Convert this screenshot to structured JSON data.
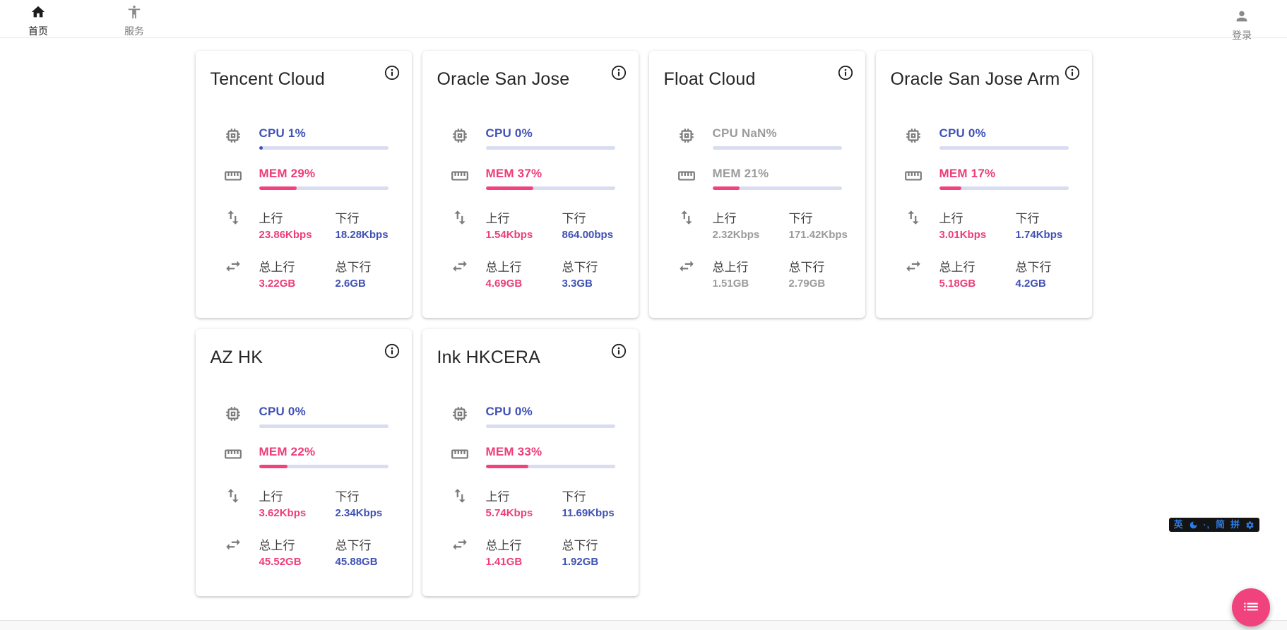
{
  "nav": {
    "home": {
      "label": "首页"
    },
    "services": {
      "label": "服务"
    },
    "login": {
      "label": "登录"
    }
  },
  "labels": {
    "up": "上行",
    "down": "下行",
    "total_up": "总上行",
    "total_down": "总下行"
  },
  "servers": [
    {
      "name": "Tencent Cloud",
      "cpu_text": "CPU 1%",
      "cpu_pct": 1,
      "mem_text": "MEM 29%",
      "mem_pct": 29,
      "up": "23.86Kbps",
      "down": "18.28Kbps",
      "total_up": "3.22GB",
      "total_down": "2.6GB",
      "offline": false
    },
    {
      "name": "Oracle San Jose",
      "cpu_text": "CPU 0%",
      "cpu_pct": 0,
      "mem_text": "MEM 37%",
      "mem_pct": 37,
      "up": "1.54Kbps",
      "down": "864.00bps",
      "total_up": "4.69GB",
      "total_down": "3.3GB",
      "offline": false
    },
    {
      "name": "Float Cloud",
      "cpu_text": "CPU NaN%",
      "cpu_pct": 0,
      "mem_text": "MEM 21%",
      "mem_pct": 21,
      "up": "2.32Kbps",
      "down": "171.42Kbps",
      "total_up": "1.51GB",
      "total_down": "2.79GB",
      "offline": true
    },
    {
      "name": "Oracle San Jose Arm",
      "cpu_text": "CPU 0%",
      "cpu_pct": 0,
      "mem_text": "MEM 17%",
      "mem_pct": 17,
      "up": "3.01Kbps",
      "down": "1.74Kbps",
      "total_up": "5.18GB",
      "total_down": "4.2GB",
      "offline": false
    },
    {
      "name": "AZ HK",
      "cpu_text": "CPU 0%",
      "cpu_pct": 0,
      "mem_text": "MEM 22%",
      "mem_pct": 22,
      "up": "3.62Kbps",
      "down": "2.34Kbps",
      "total_up": "45.52GB",
      "total_down": "45.88GB",
      "offline": false
    },
    {
      "name": "Ink HKCERA",
      "cpu_text": "CPU 0%",
      "cpu_pct": 0,
      "mem_text": "MEM 33%",
      "mem_pct": 33,
      "up": "5.74Kbps",
      "down": "11.69Kbps",
      "total_up": "1.41GB",
      "total_down": "1.92GB",
      "offline": false
    }
  ],
  "ime": {
    "lang": "英",
    "punct": "·,",
    "simplified": "简",
    "pinyin": "拼"
  },
  "colors": {
    "accent_blue": "#3f51b5",
    "accent_pink": "#ee3d78",
    "bar_track": "#d9ddf1",
    "fab_pink": "#f0437e"
  }
}
